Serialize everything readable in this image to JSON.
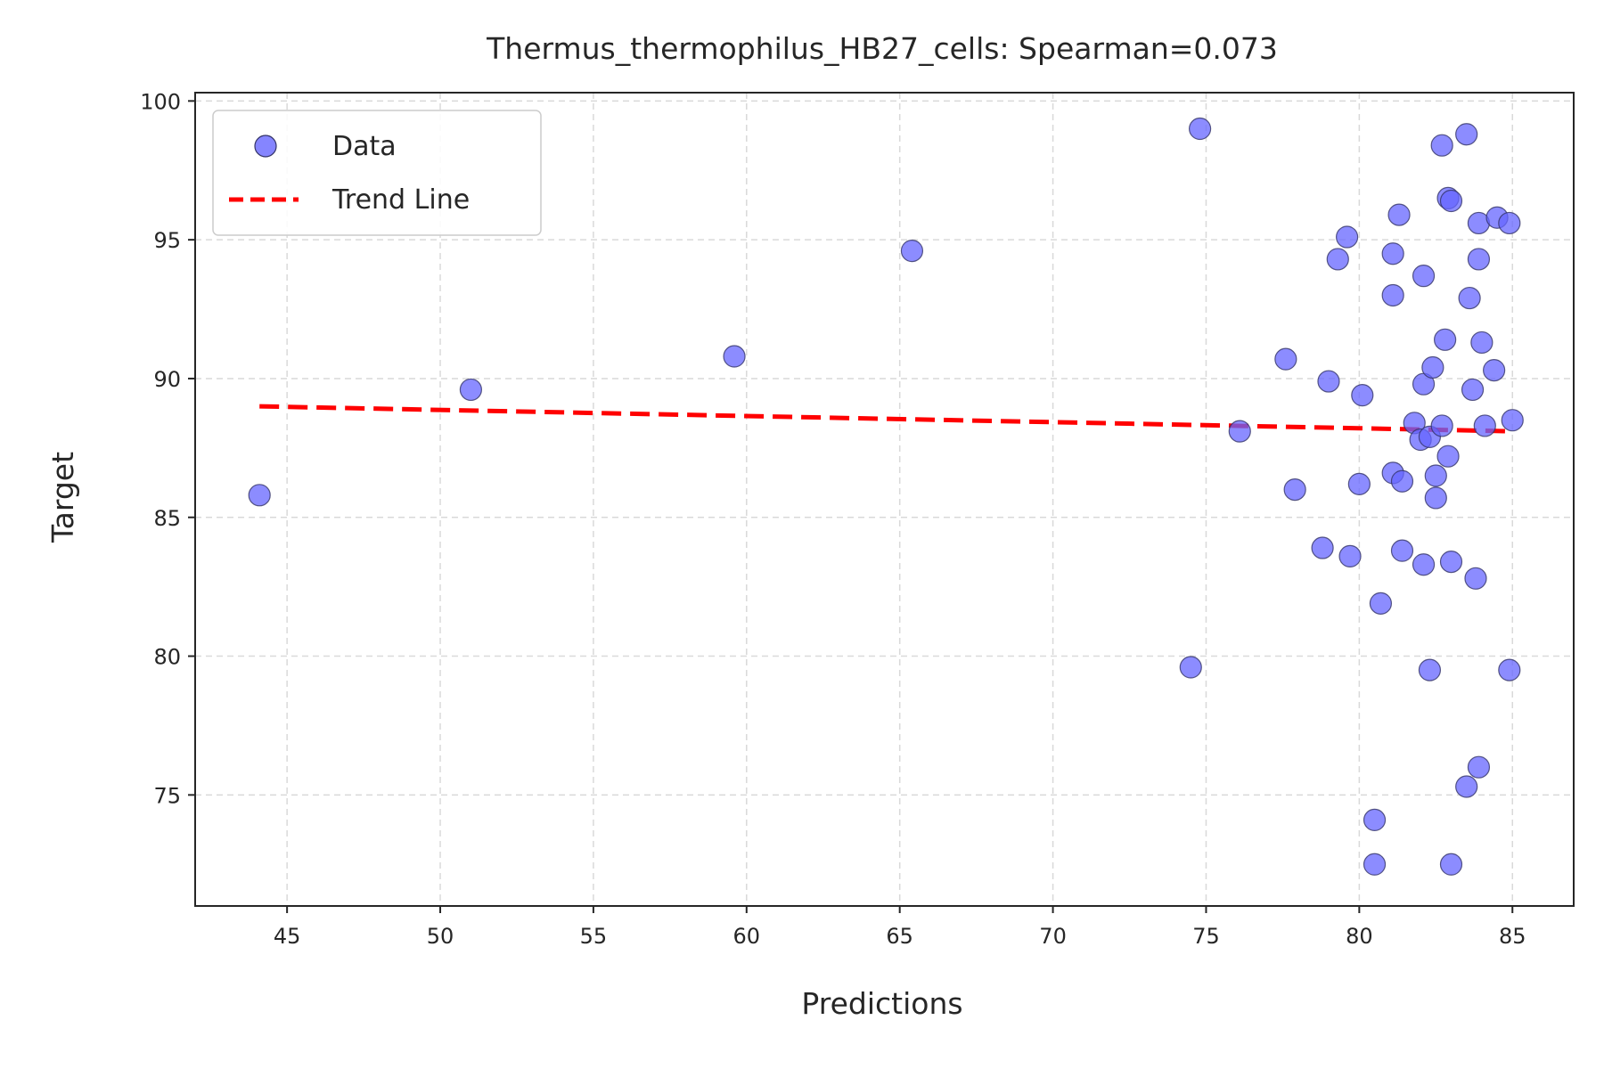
{
  "chart_data": {
    "type": "scatter",
    "title": "Thermus_thermophilus_HB27_cells: Spearman=0.073",
    "xlabel": "Predictions",
    "ylabel": "Target",
    "xlim": [
      42,
      87
    ],
    "ylim": [
      71,
      100.3
    ],
    "xticks": [
      45,
      50,
      55,
      60,
      65,
      70,
      75,
      80,
      85
    ],
    "yticks": [
      75,
      80,
      85,
      90,
      95,
      100
    ],
    "grid": true,
    "legend_position": "top-left",
    "series": [
      {
        "name": "Data",
        "kind": "scatter",
        "color": "#6666ff",
        "points": [
          [
            44.1,
            85.8
          ],
          [
            51.0,
            89.6
          ],
          [
            59.6,
            90.8
          ],
          [
            65.4,
            94.6
          ],
          [
            74.5,
            79.6
          ],
          [
            74.8,
            99.0
          ],
          [
            76.1,
            88.1
          ],
          [
            77.6,
            90.7
          ],
          [
            77.9,
            86.0
          ],
          [
            78.8,
            83.9
          ],
          [
            79.0,
            89.9
          ],
          [
            79.3,
            94.3
          ],
          [
            79.6,
            95.1
          ],
          [
            79.7,
            83.6
          ],
          [
            80.0,
            86.2
          ],
          [
            80.1,
            89.4
          ],
          [
            80.5,
            74.1
          ],
          [
            80.5,
            72.5
          ],
          [
            80.7,
            81.9
          ],
          [
            81.1,
            94.5
          ],
          [
            81.1,
            93.0
          ],
          [
            81.1,
            86.6
          ],
          [
            81.3,
            95.9
          ],
          [
            81.4,
            86.3
          ],
          [
            81.4,
            83.8
          ],
          [
            81.8,
            88.4
          ],
          [
            82.0,
            87.8
          ],
          [
            82.1,
            89.8
          ],
          [
            82.1,
            93.7
          ],
          [
            82.1,
            83.3
          ],
          [
            82.3,
            87.9
          ],
          [
            82.3,
            79.5
          ],
          [
            82.4,
            90.4
          ],
          [
            82.5,
            86.5
          ],
          [
            82.5,
            85.7
          ],
          [
            82.7,
            88.3
          ],
          [
            82.7,
            98.4
          ],
          [
            82.8,
            91.4
          ],
          [
            82.9,
            96.5
          ],
          [
            82.9,
            87.2
          ],
          [
            83.0,
            96.4
          ],
          [
            83.0,
            83.4
          ],
          [
            83.0,
            72.5
          ],
          [
            83.5,
            98.8
          ],
          [
            83.5,
            75.3
          ],
          [
            83.6,
            92.9
          ],
          [
            83.7,
            89.6
          ],
          [
            83.8,
            82.8
          ],
          [
            83.9,
            95.6
          ],
          [
            83.9,
            94.3
          ],
          [
            83.9,
            76.0
          ],
          [
            84.0,
            91.3
          ],
          [
            84.1,
            88.3
          ],
          [
            84.4,
            90.3
          ],
          [
            84.5,
            95.8
          ],
          [
            84.9,
            95.6
          ],
          [
            84.9,
            79.5
          ],
          [
            85.0,
            88.5
          ]
        ]
      },
      {
        "name": "Trend Line",
        "kind": "line",
        "color": "#ff0000",
        "x": [
          44.1,
          85.0
        ],
        "y": [
          89.0,
          88.1
        ]
      }
    ]
  }
}
